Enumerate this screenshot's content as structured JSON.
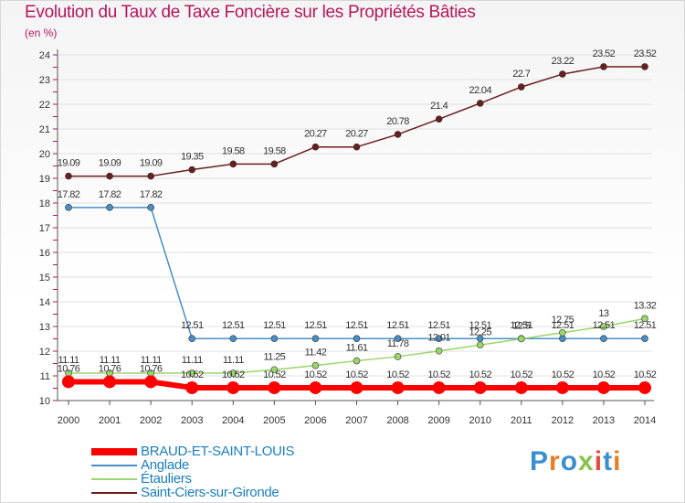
{
  "title": "Evolution du Taux de Taxe Foncière sur les Propriétés Bâties",
  "unit": "(en %)",
  "logo_text": "Proxiti",
  "colors": {
    "title": "#b5175e",
    "axis": "#555555",
    "grid": "#e0e0e0",
    "legend_text": "#1a7fc0"
  },
  "chart_data": {
    "type": "line",
    "title": "Evolution du Taux de Taxe Foncière sur les Propriétés Bâties",
    "ylabel": "(en %)",
    "xlabel": "",
    "ylim": [
      10,
      24
    ],
    "yticks": [
      10,
      11,
      12,
      13,
      14,
      15,
      16,
      17,
      18,
      19,
      20,
      21,
      22,
      23,
      24
    ],
    "categories": [
      "2000",
      "2001",
      "2002",
      "2003",
      "2004",
      "2005",
      "2006",
      "2007",
      "2008",
      "2009",
      "2010",
      "2011",
      "2012",
      "2013",
      "2014"
    ],
    "series": [
      {
        "name": "BRAUD-ET-SAINT-LOUIS",
        "color": "#ff0000",
        "values": [
          10.76,
          10.76,
          10.76,
          10.52,
          10.52,
          10.52,
          10.52,
          10.52,
          10.52,
          10.52,
          10.52,
          10.52,
          10.52,
          10.52,
          10.52
        ],
        "labels": [
          "10.76",
          "10.76",
          "10.76",
          "10.52",
          "10.52",
          "10.52",
          "10.52",
          "10.52",
          "10.52",
          "10.52",
          "10.52",
          "10.52",
          "10.52",
          "10.52",
          "10.52"
        ]
      },
      {
        "name": "Anglade",
        "color": "#4a8fc4",
        "values": [
          17.82,
          17.82,
          17.82,
          12.51,
          12.51,
          12.51,
          12.51,
          12.51,
          12.51,
          12.51,
          12.51,
          12.51,
          12.51,
          12.51,
          12.51
        ],
        "labels": [
          "17.82",
          "17.82",
          "17.82",
          "12.51",
          "12.51",
          "12.51",
          "12.51",
          "12.51",
          "12.51",
          "12.51",
          "12.51",
          "12.51",
          "12.51",
          "12.51",
          "12.51"
        ]
      },
      {
        "name": "Étauliers",
        "color": "#9bd66b",
        "values": [
          11.11,
          11.11,
          11.11,
          11.11,
          11.11,
          11.25,
          11.42,
          11.61,
          11.78,
          12.01,
          12.25,
          12.5,
          12.75,
          13,
          13.32
        ],
        "labels": [
          "11.11",
          "11.11",
          "11.11",
          "11.11",
          "11.11",
          "11.25",
          "11.42",
          "11.61",
          "11.78",
          "12.01",
          "12.25",
          "12.5",
          "12.75",
          "13",
          "13.32"
        ]
      },
      {
        "name": "Saint-Ciers-sur-Gironde",
        "color": "#6b1e1e",
        "values": [
          19.09,
          19.09,
          19.09,
          19.35,
          19.58,
          19.58,
          20.27,
          20.27,
          20.78,
          21.4,
          22.04,
          22.7,
          23.22,
          23.52,
          23.52
        ],
        "labels": [
          "19.09",
          "19.09",
          "19.09",
          "19.35",
          "19.58",
          "19.58",
          "20.27",
          "20.27",
          "20.78",
          "21.4",
          "22.04",
          "22.7",
          "23.22",
          "23.52",
          "23.52"
        ]
      }
    ],
    "legend_position": "bottom-left"
  }
}
